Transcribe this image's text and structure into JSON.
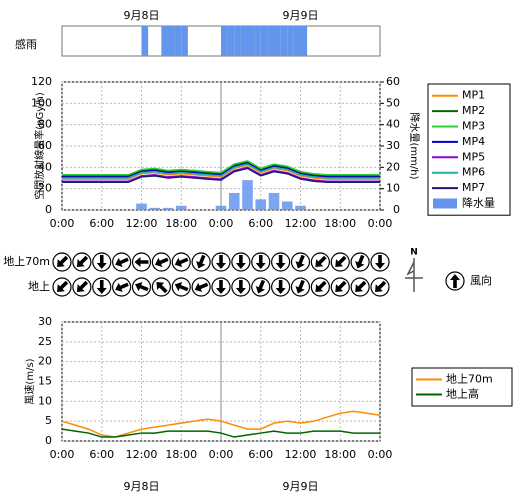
{
  "date_labels": [
    "9月8日",
    "9月9日"
  ],
  "chart_data": [
    {
      "type": "bar",
      "label": "感雨",
      "color": "#6495ed",
      "xlim": [
        0,
        48
      ],
      "x": [
        0,
        1,
        2,
        3,
        4,
        5,
        6,
        7,
        8,
        9,
        10,
        11,
        12,
        13,
        14,
        15,
        16,
        17,
        18,
        19,
        20,
        21,
        22,
        23,
        24,
        25,
        26,
        27,
        28,
        29,
        30,
        31,
        32,
        33,
        34,
        35,
        36,
        37,
        38,
        39,
        40,
        41,
        42,
        43,
        44,
        45,
        46,
        47
      ],
      "values": [
        0,
        0,
        0,
        0,
        0,
        0,
        0,
        0,
        0,
        0,
        0,
        0,
        1,
        0,
        0,
        1,
        1,
        1,
        1,
        0,
        0,
        0,
        0,
        0,
        1,
        1,
        1,
        1,
        1,
        1,
        1,
        1,
        1,
        1,
        1,
        1,
        1,
        0,
        0,
        0,
        0,
        0,
        0,
        0,
        0,
        0,
        0,
        0
      ]
    },
    {
      "type": "line",
      "ylabel": "空間放射線量率(nGy/h)",
      "y2label": "降水量(mm/h)",
      "xlim": [
        0,
        48
      ],
      "ylim": [
        0,
        120
      ],
      "y2lim": [
        0,
        60
      ],
      "xticks": [
        {
          "value": 0,
          "label": "0:00"
        },
        {
          "value": 6,
          "label": "6:00"
        },
        {
          "value": 12,
          "label": "12:00"
        },
        {
          "value": 18,
          "label": "18:00"
        },
        {
          "value": 24,
          "label": "0:00"
        },
        {
          "value": 30,
          "label": "6:00"
        },
        {
          "value": 36,
          "label": "12:00"
        },
        {
          "value": 42,
          "label": "18:00"
        },
        {
          "value": 48,
          "label": "0:00"
        }
      ],
      "yticks": [
        0,
        20,
        40,
        60,
        80,
        100,
        120
      ],
      "y2ticks": [
        0,
        10,
        20,
        30,
        40,
        50,
        60
      ],
      "grid": true,
      "x": [
        0,
        2,
        4,
        6,
        8,
        10,
        12,
        14,
        16,
        18,
        20,
        22,
        24,
        26,
        28,
        30,
        32,
        34,
        36,
        38,
        40,
        42,
        44,
        46,
        48
      ],
      "series": [
        {
          "name": "MP1",
          "color": "#ff8c00",
          "values": [
            29,
            29,
            29,
            29,
            29,
            29,
            34,
            35,
            33,
            34,
            33,
            32,
            31,
            39,
            42,
            35,
            39,
            37,
            32,
            30,
            29,
            29,
            29,
            29,
            29
          ]
        },
        {
          "name": "MP2",
          "color": "#006400",
          "values": [
            32,
            32,
            32,
            32,
            32,
            32,
            37,
            38,
            36,
            37,
            36,
            35,
            34,
            42,
            45,
            38,
            42,
            40,
            35,
            33,
            32,
            32,
            32,
            32,
            32
          ]
        },
        {
          "name": "MP3",
          "color": "#32cd32",
          "values": [
            33,
            33,
            33,
            33,
            33,
            33,
            38,
            39,
            37,
            38,
            37,
            36,
            35,
            43,
            46,
            39,
            43,
            41,
            36,
            34,
            33,
            33,
            33,
            33,
            33
          ]
        },
        {
          "name": "MP4",
          "color": "#0000cd",
          "values": [
            31,
            31,
            31,
            31,
            31,
            31,
            36,
            37,
            35,
            36,
            35,
            34,
            33,
            41,
            44,
            37,
            41,
            39,
            34,
            32,
            31,
            31,
            31,
            31,
            31
          ]
        },
        {
          "name": "MP5",
          "color": "#9400d3",
          "values": [
            27,
            27,
            27,
            27,
            27,
            27,
            32,
            33,
            31,
            32,
            31,
            30,
            29,
            37,
            40,
            33,
            37,
            35,
            30,
            28,
            27,
            27,
            27,
            27,
            27
          ]
        },
        {
          "name": "MP6",
          "color": "#20b2aa",
          "values": [
            30,
            30,
            30,
            30,
            30,
            30,
            35,
            36,
            34,
            35,
            34,
            33,
            32,
            40,
            43,
            36,
            40,
            38,
            33,
            31,
            30,
            30,
            30,
            30,
            30
          ]
        },
        {
          "name": "MP7",
          "color": "#191970",
          "values": [
            26,
            26,
            26,
            26,
            26,
            26,
            31,
            32,
            30,
            31,
            30,
            29,
            28,
            36,
            39,
            32,
            36,
            34,
            29,
            27,
            26,
            26,
            26,
            26,
            26
          ]
        },
        {
          "name": "降水量",
          "color": "#6495ed",
          "axis": "y2",
          "type": "bar",
          "values": [
            0,
            0,
            0,
            0,
            0,
            0,
            3,
            1,
            1,
            2,
            0,
            0,
            2,
            8,
            14,
            5,
            8,
            4,
            2,
            0,
            0,
            0,
            0,
            0,
            0
          ]
        }
      ]
    },
    {
      "type": "arrows",
      "legend_label": "風向",
      "north_label": "N",
      "xlim": [
        0,
        48
      ],
      "x": [
        0,
        3,
        6,
        9,
        12,
        15,
        18,
        21,
        24,
        27,
        30,
        33,
        36,
        39,
        42,
        45,
        48
      ],
      "series": [
        {
          "name": "地上70m",
          "values": [
            225,
            225,
            180,
            247,
            270,
            247,
            247,
            202,
            180,
            180,
            180,
            180,
            202,
            225,
            225,
            202,
            180
          ]
        },
        {
          "name": "地上",
          "values": [
            225,
            225,
            180,
            247,
            292,
            315,
            292,
            247,
            180,
            180,
            202,
            180,
            202,
            225,
            225,
            225,
            225
          ]
        }
      ]
    },
    {
      "type": "line",
      "ylabel": "風速(m/s)",
      "xlim": [
        0,
        48
      ],
      "ylim": [
        0,
        30
      ],
      "xticks": [
        {
          "value": 0,
          "label": "0:00"
        },
        {
          "value": 6,
          "label": "6:00"
        },
        {
          "value": 12,
          "label": "12:00"
        },
        {
          "value": 18,
          "label": "18:00"
        },
        {
          "value": 24,
          "label": "0:00"
        },
        {
          "value": 30,
          "label": "6:00"
        },
        {
          "value": 36,
          "label": "12:00"
        },
        {
          "value": 42,
          "label": "18:00"
        },
        {
          "value": 48,
          "label": "0:00"
        }
      ],
      "yticks": [
        0,
        5,
        10,
        15,
        20,
        25,
        30
      ],
      "grid": true,
      "x": [
        0,
        2,
        4,
        6,
        8,
        10,
        12,
        14,
        16,
        18,
        20,
        22,
        24,
        26,
        28,
        30,
        32,
        34,
        36,
        38,
        40,
        42,
        44,
        46,
        48
      ],
      "series": [
        {
          "name": "地上70m",
          "color": "#ff8c00",
          "values": [
            5,
            4,
            3,
            1.5,
            1,
            2,
            3,
            3.5,
            4,
            4.5,
            5,
            5.5,
            5,
            4,
            3,
            3,
            4.5,
            5,
            4.5,
            5,
            6,
            7,
            7.5,
            7,
            6.5
          ]
        },
        {
          "name": "地上高",
          "color": "#006400",
          "values": [
            3,
            2.5,
            2,
            1,
            1,
            1.5,
            2,
            2,
            2.5,
            2.5,
            2.5,
            2.5,
            2,
            1,
            1.5,
            2,
            2.5,
            2,
            2,
            2.5,
            2.5,
            2.5,
            2,
            2,
            2
          ]
        }
      ]
    }
  ]
}
